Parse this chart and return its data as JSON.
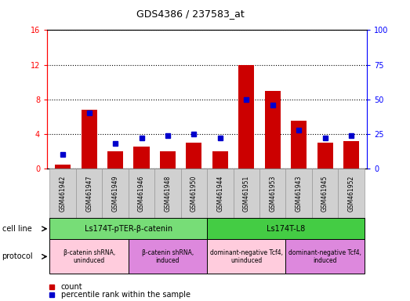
{
  "title": "GDS4386 / 237583_at",
  "samples": [
    "GSM461942",
    "GSM461947",
    "GSM461949",
    "GSM461946",
    "GSM461948",
    "GSM461950",
    "GSM461944",
    "GSM461951",
    "GSM461953",
    "GSM461943",
    "GSM461945",
    "GSM461952"
  ],
  "count_values": [
    0.5,
    6.8,
    2.0,
    2.5,
    2.0,
    3.0,
    2.0,
    12.0,
    9.0,
    5.5,
    3.0,
    3.2
  ],
  "percentile_values": [
    10,
    40,
    18,
    22,
    24,
    25,
    22,
    50,
    46,
    28,
    22,
    24
  ],
  "ylim_left": [
    0,
    16
  ],
  "ylim_right": [
    0,
    100
  ],
  "yticks_left": [
    0,
    4,
    8,
    12,
    16
  ],
  "yticks_right": [
    0,
    25,
    50,
    75,
    100
  ],
  "cell_line_groups": [
    {
      "label": "Ls174T-pTER-β-catenin",
      "start": 0,
      "end": 6,
      "color": "#77dd77"
    },
    {
      "label": "Ls174T-L8",
      "start": 6,
      "end": 12,
      "color": "#44cc44"
    }
  ],
  "protocol_groups": [
    {
      "label": "β-catenin shRNA,\nuninduced",
      "start": 0,
      "end": 3,
      "color": "#ffccdd"
    },
    {
      "label": "β-catenin shRNA,\ninduced",
      "start": 3,
      "end": 6,
      "color": "#dd88dd"
    },
    {
      "label": "dominant-negative Tcf4,\nuninduced",
      "start": 6,
      "end": 9,
      "color": "#ffccdd"
    },
    {
      "label": "dominant-negative Tcf4,\ninduced",
      "start": 9,
      "end": 12,
      "color": "#dd88dd"
    }
  ],
  "bar_color": "#cc0000",
  "square_color": "#0000cc",
  "bg_color": "#ffffff",
  "plot_bg_color": "#ffffff",
  "grid_color": "#000000",
  "cell_line_label": "cell line",
  "protocol_label": "protocol",
  "legend_count": "count",
  "legend_percentile": "percentile rank within the sample",
  "ticklabel_bg": "#d0d0d0"
}
